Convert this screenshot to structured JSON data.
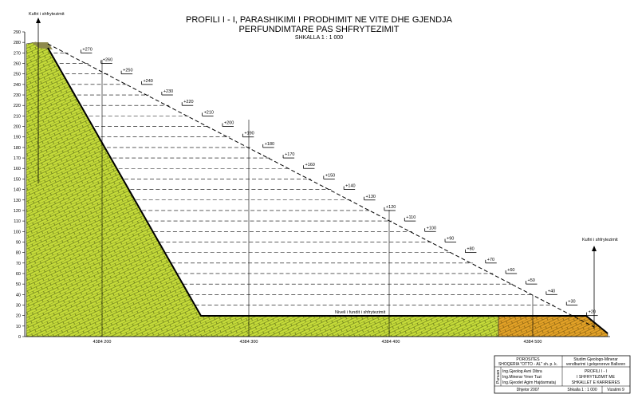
{
  "title": {
    "lines": [
      "PROFILI  I - I, PARASHIKIMI I PRODHIMIT NE VITE DHE GJENDJA",
      "PERFUNDIMTARE PAS SHFRYTEZIMIT"
    ],
    "scale": "SHKALLA 1 : 1 000"
  },
  "boundary_labels": {
    "left": "Kufiri i shfrytezimit",
    "right": "Kufiri i shfrytezimit"
  },
  "elevation_axis": {
    "ticks": [
      0,
      10,
      20,
      30,
      40,
      50,
      60,
      70,
      80,
      90,
      100,
      110,
      120,
      130,
      140,
      150,
      160,
      170,
      180,
      190,
      200,
      210,
      220,
      230,
      240,
      250,
      260,
      270,
      280,
      290
    ]
  },
  "benches": [
    {
      "value": 270,
      "label": "+270"
    },
    {
      "value": 260,
      "label": "+260"
    },
    {
      "value": 250,
      "label": "+250"
    },
    {
      "value": 240,
      "label": "+240"
    },
    {
      "value": 230,
      "label": "+230"
    },
    {
      "value": 220,
      "label": "+220"
    },
    {
      "value": 210,
      "label": "+210"
    },
    {
      "value": 200,
      "label": "+200"
    },
    {
      "value": 190,
      "label": "+190"
    },
    {
      "value": 180,
      "label": "+180"
    },
    {
      "value": 170,
      "label": "+170"
    },
    {
      "value": 160,
      "label": "+160"
    },
    {
      "value": 150,
      "label": "+150"
    },
    {
      "value": 140,
      "label": "+140"
    },
    {
      "value": 130,
      "label": "+130"
    },
    {
      "value": 120,
      "label": "+120"
    },
    {
      "value": 110,
      "label": "+110"
    },
    {
      "value": 100,
      "label": "+100"
    },
    {
      "value": 90,
      "label": "+90"
    },
    {
      "value": 80,
      "label": "+80"
    },
    {
      "value": 70,
      "label": "+70"
    },
    {
      "value": 60,
      "label": "+60"
    },
    {
      "value": 50,
      "label": "+50"
    },
    {
      "value": 40,
      "label": "+40"
    },
    {
      "value": 30,
      "label": "+30"
    },
    {
      "value": 20,
      "label": "+20"
    }
  ],
  "final_level_label": "Niveli i fundit i shfrytezimit",
  "section_labels": [
    "4384 200",
    "4384 300",
    "4384 400",
    "4384 500"
  ],
  "title_block": {
    "client_heading": "POROSITES",
    "client": "SHOQERIA \"OTTO - AL\" sh. p. k.",
    "study": [
      "Studim Gjeologo-Minerar",
      "vendburimi i gelqeroreve Ballsren"
    ],
    "authors_heading": "Punuan",
    "authors": [
      "Ing.Gjeolog  Avni Dibra",
      "Ing.Minerar   Ymer Tuzi",
      "Ing.Gjeodet Agim Hajdarmataj"
    ],
    "drawing": [
      "PROFILI  I - I",
      "I SHFRYTEZIMIT ME",
      "SHKALLET E KARRIERES"
    ],
    "date": "Dhjetor 2007",
    "scale": "Shkalla 1 : 1 000",
    "sheet": "Vizatimi  9"
  }
}
